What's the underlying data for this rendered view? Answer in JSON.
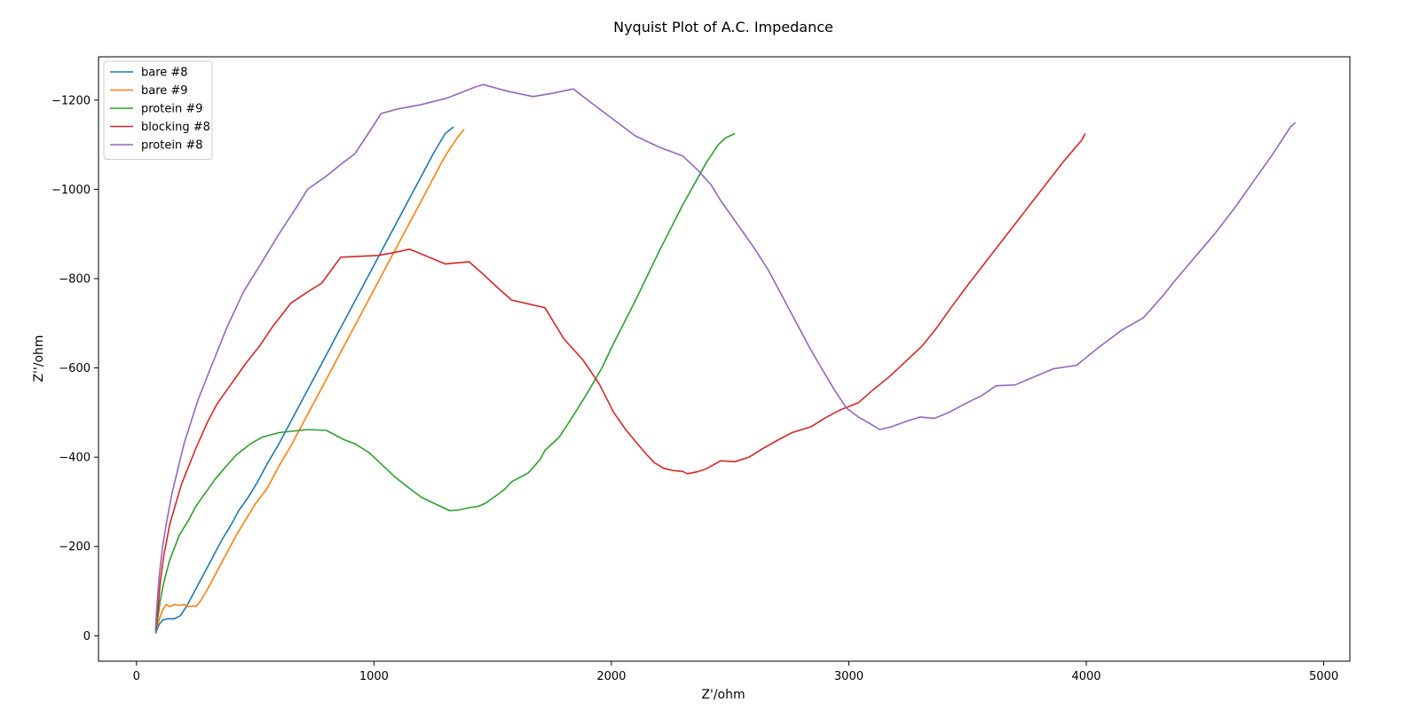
{
  "chart_data": {
    "type": "line",
    "title": "Nyquist Plot of A.C. Impedance",
    "xlabel": "Z'/ohm",
    "ylabel": "Z''/ohm",
    "xlim": [
      -160,
      5110
    ],
    "ylim": [
      57,
      -1297
    ],
    "y_inverted": true,
    "grid": false,
    "legend_position": "top-left",
    "x_ticks": [
      0,
      1000,
      2000,
      3000,
      4000,
      5000
    ],
    "x_tick_labels": [
      "0",
      "1000",
      "2000",
      "3000",
      "4000",
      "5000"
    ],
    "y_ticks": [
      0,
      -200,
      -400,
      -600,
      -800,
      -1000,
      -1200
    ],
    "y_tick_labels": [
      "0",
      "−200",
      "−400",
      "−600",
      "−800",
      "−1000",
      "−1200"
    ],
    "series": [
      {
        "name": "bare #8",
        "color": "#1f77b4",
        "points": [
          [
            80,
            -5
          ],
          [
            95,
            -25
          ],
          [
            110,
            -35
          ],
          [
            130,
            -38
          ],
          [
            160,
            -38
          ],
          [
            185,
            -45
          ],
          [
            210,
            -65
          ],
          [
            240,
            -95
          ],
          [
            270,
            -125
          ],
          [
            300,
            -155
          ],
          [
            330,
            -185
          ],
          [
            360,
            -215
          ],
          [
            400,
            -250
          ],
          [
            430,
            -280
          ],
          [
            470,
            -310
          ],
          [
            510,
            -345
          ],
          [
            550,
            -385
          ],
          [
            600,
            -430
          ],
          [
            650,
            -480
          ],
          [
            700,
            -530
          ],
          [
            750,
            -580
          ],
          [
            800,
            -630
          ],
          [
            850,
            -680
          ],
          [
            900,
            -730
          ],
          [
            950,
            -780
          ],
          [
            1000,
            -830
          ],
          [
            1050,
            -880
          ],
          [
            1100,
            -930
          ],
          [
            1150,
            -980
          ],
          [
            1200,
            -1030
          ],
          [
            1250,
            -1080
          ],
          [
            1300,
            -1125
          ],
          [
            1335,
            -1140
          ]
        ]
      },
      {
        "name": "bare #9",
        "color": "#ff7f0e",
        "points": [
          [
            80,
            -10
          ],
          [
            95,
            -35
          ],
          [
            110,
            -58
          ],
          [
            125,
            -70
          ],
          [
            140,
            -65
          ],
          [
            160,
            -70
          ],
          [
            180,
            -68
          ],
          [
            200,
            -70
          ],
          [
            220,
            -65
          ],
          [
            240,
            -67
          ],
          [
            250,
            -65
          ],
          [
            270,
            -78
          ],
          [
            300,
            -105
          ],
          [
            330,
            -135
          ],
          [
            360,
            -165
          ],
          [
            390,
            -195
          ],
          [
            420,
            -225
          ],
          [
            460,
            -260
          ],
          [
            500,
            -295
          ],
          [
            550,
            -330
          ],
          [
            600,
            -380
          ],
          [
            650,
            -425
          ],
          [
            700,
            -475
          ],
          [
            750,
            -525
          ],
          [
            800,
            -575
          ],
          [
            850,
            -625
          ],
          [
            900,
            -675
          ],
          [
            950,
            -725
          ],
          [
            1000,
            -775
          ],
          [
            1050,
            -825
          ],
          [
            1100,
            -875
          ],
          [
            1150,
            -925
          ],
          [
            1200,
            -975
          ],
          [
            1250,
            -1025
          ],
          [
            1300,
            -1075
          ],
          [
            1350,
            -1115
          ],
          [
            1380,
            -1135
          ]
        ]
      },
      {
        "name": "protein #9",
        "color": "#2ca02c",
        "points": [
          [
            80,
            -10
          ],
          [
            90,
            -40
          ],
          [
            100,
            -80
          ],
          [
            115,
            -120
          ],
          [
            140,
            -170
          ],
          [
            180,
            -225
          ],
          [
            220,
            -260
          ],
          [
            250,
            -290
          ],
          [
            290,
            -320
          ],
          [
            330,
            -350
          ],
          [
            370,
            -375
          ],
          [
            420,
            -405
          ],
          [
            480,
            -430
          ],
          [
            530,
            -445
          ],
          [
            600,
            -455
          ],
          [
            650,
            -458
          ],
          [
            720,
            -462
          ],
          [
            800,
            -460
          ],
          [
            870,
            -440
          ],
          [
            920,
            -430
          ],
          [
            980,
            -410
          ],
          [
            1030,
            -385
          ],
          [
            1090,
            -355
          ],
          [
            1150,
            -330
          ],
          [
            1200,
            -310
          ],
          [
            1260,
            -295
          ],
          [
            1300,
            -285
          ],
          [
            1320,
            -280
          ],
          [
            1360,
            -282
          ],
          [
            1400,
            -287
          ],
          [
            1440,
            -290
          ],
          [
            1470,
            -297
          ],
          [
            1510,
            -312
          ],
          [
            1550,
            -328
          ],
          [
            1580,
            -345
          ],
          [
            1650,
            -365
          ],
          [
            1700,
            -395
          ],
          [
            1720,
            -415
          ],
          [
            1780,
            -445
          ],
          [
            1830,
            -485
          ],
          [
            1900,
            -545
          ],
          [
            1960,
            -600
          ],
          [
            2000,
            -645
          ],
          [
            2100,
            -750
          ],
          [
            2200,
            -860
          ],
          [
            2300,
            -965
          ],
          [
            2400,
            -1060
          ],
          [
            2450,
            -1100
          ],
          [
            2480,
            -1115
          ],
          [
            2520,
            -1125
          ]
        ]
      },
      {
        "name": "blocking #8",
        "color": "#d62728",
        "points": [
          [
            80,
            -10
          ],
          [
            90,
            -60
          ],
          [
            100,
            -120
          ],
          [
            115,
            -180
          ],
          [
            140,
            -250
          ],
          [
            190,
            -340
          ],
          [
            250,
            -420
          ],
          [
            300,
            -480
          ],
          [
            340,
            -520
          ],
          [
            380,
            -550
          ],
          [
            420,
            -580
          ],
          [
            460,
            -610
          ],
          [
            520,
            -650
          ],
          [
            570,
            -690
          ],
          [
            650,
            -745
          ],
          [
            720,
            -770
          ],
          [
            780,
            -790
          ],
          [
            860,
            -848
          ],
          [
            940,
            -850
          ],
          [
            1020,
            -852
          ],
          [
            1080,
            -858
          ],
          [
            1150,
            -866
          ],
          [
            1200,
            -855
          ],
          [
            1300,
            -833
          ],
          [
            1400,
            -838
          ],
          [
            1460,
            -810
          ],
          [
            1520,
            -780
          ],
          [
            1580,
            -752
          ],
          [
            1720,
            -735
          ],
          [
            1800,
            -665
          ],
          [
            1880,
            -618
          ],
          [
            1950,
            -563
          ],
          [
            2010,
            -500
          ],
          [
            2060,
            -462
          ],
          [
            2110,
            -430
          ],
          [
            2150,
            -405
          ],
          [
            2180,
            -388
          ],
          [
            2220,
            -375
          ],
          [
            2260,
            -370
          ],
          [
            2300,
            -368
          ],
          [
            2320,
            -363
          ],
          [
            2360,
            -367
          ],
          [
            2400,
            -374
          ],
          [
            2460,
            -392
          ],
          [
            2520,
            -390
          ],
          [
            2580,
            -400
          ],
          [
            2640,
            -420
          ],
          [
            2700,
            -438
          ],
          [
            2760,
            -455
          ],
          [
            2840,
            -468
          ],
          [
            2900,
            -488
          ],
          [
            2960,
            -505
          ],
          [
            3040,
            -522
          ],
          [
            3100,
            -550
          ],
          [
            3170,
            -580
          ],
          [
            3250,
            -620
          ],
          [
            3310,
            -650
          ],
          [
            3370,
            -690
          ],
          [
            3430,
            -735
          ],
          [
            3500,
            -785
          ],
          [
            3580,
            -840
          ],
          [
            3660,
            -895
          ],
          [
            3740,
            -950
          ],
          [
            3820,
            -1005
          ],
          [
            3900,
            -1060
          ],
          [
            3980,
            -1110
          ],
          [
            3995,
            -1125
          ]
        ]
      },
      {
        "name": "protein #8",
        "color": "#9467bd",
        "points": [
          [
            80,
            -10
          ],
          [
            85,
            -60
          ],
          [
            95,
            -130
          ],
          [
            110,
            -200
          ],
          [
            125,
            -250
          ],
          [
            150,
            -320
          ],
          [
            200,
            -430
          ],
          [
            260,
            -530
          ],
          [
            320,
            -610
          ],
          [
            380,
            -690
          ],
          [
            450,
            -770
          ],
          [
            520,
            -830
          ],
          [
            600,
            -900
          ],
          [
            680,
            -965
          ],
          [
            720,
            -1000
          ],
          [
            800,
            -1030
          ],
          [
            870,
            -1060
          ],
          [
            920,
            -1080
          ],
          [
            970,
            -1120
          ],
          [
            1030,
            -1170
          ],
          [
            1100,
            -1180
          ],
          [
            1200,
            -1190
          ],
          [
            1310,
            -1205
          ],
          [
            1420,
            -1228
          ],
          [
            1460,
            -1235
          ],
          [
            1560,
            -1220
          ],
          [
            1670,
            -1208
          ],
          [
            1750,
            -1215
          ],
          [
            1840,
            -1225
          ],
          [
            1900,
            -1200
          ],
          [
            2000,
            -1160
          ],
          [
            2100,
            -1120
          ],
          [
            2200,
            -1095
          ],
          [
            2300,
            -1075
          ],
          [
            2360,
            -1045
          ],
          [
            2420,
            -1010
          ],
          [
            2460,
            -975
          ],
          [
            2500,
            -945
          ],
          [
            2540,
            -915
          ],
          [
            2600,
            -870
          ],
          [
            2660,
            -820
          ],
          [
            2720,
            -760
          ],
          [
            2780,
            -700
          ],
          [
            2840,
            -640
          ],
          [
            2890,
            -595
          ],
          [
            2940,
            -550
          ],
          [
            2990,
            -510
          ],
          [
            3040,
            -490
          ],
          [
            3090,
            -475
          ],
          [
            3130,
            -462
          ],
          [
            3180,
            -468
          ],
          [
            3240,
            -480
          ],
          [
            3300,
            -490
          ],
          [
            3360,
            -487
          ],
          [
            3420,
            -500
          ],
          [
            3490,
            -520
          ],
          [
            3560,
            -538
          ],
          [
            3620,
            -560
          ],
          [
            3700,
            -562
          ],
          [
            3780,
            -580
          ],
          [
            3860,
            -598
          ],
          [
            3960,
            -606
          ],
          [
            4050,
            -645
          ],
          [
            4150,
            -685
          ],
          [
            4240,
            -712
          ],
          [
            4320,
            -760
          ],
          [
            4380,
            -800
          ],
          [
            4460,
            -850
          ],
          [
            4540,
            -900
          ],
          [
            4620,
            -955
          ],
          [
            4700,
            -1015
          ],
          [
            4780,
            -1075
          ],
          [
            4860,
            -1140
          ],
          [
            4880,
            -1150
          ]
        ]
      }
    ]
  }
}
